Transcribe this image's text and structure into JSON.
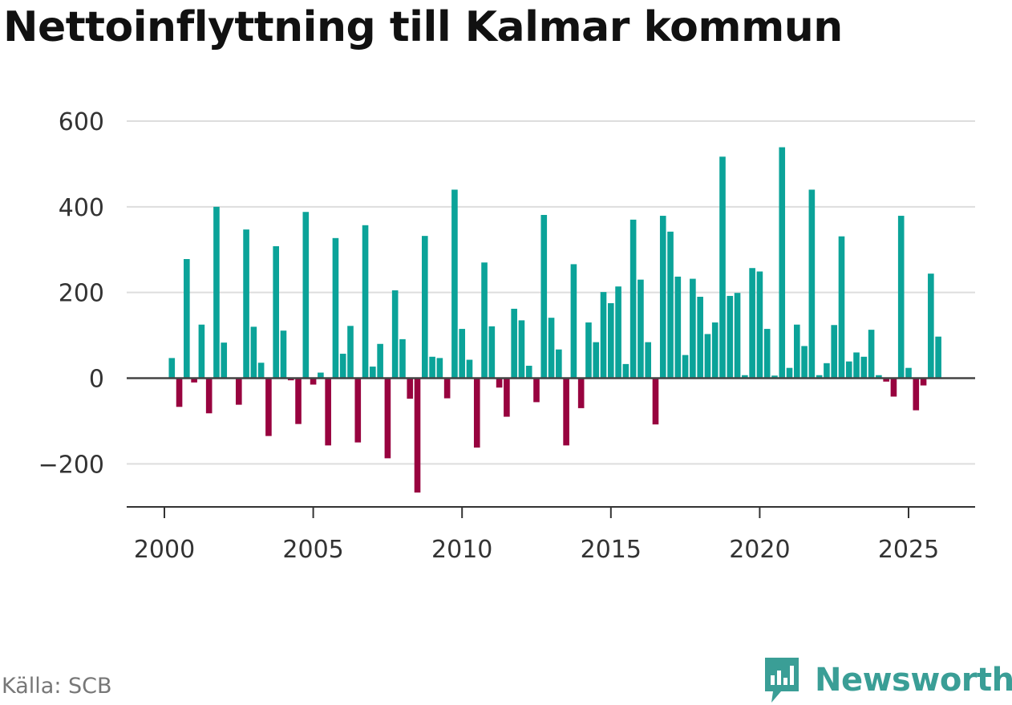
{
  "title": "Nettoinflyttning till Kalmar kommun",
  "source": "Källa: SCB",
  "brand": {
    "name": "Newsworthy",
    "icon": "newsworthy-logo-icon"
  },
  "colors": {
    "positive": "#0ba399",
    "negative": "#98033f",
    "brand": "#3a9e96",
    "grid": "#dddddd",
    "zero": "#444444"
  },
  "chart_data": {
    "type": "bar",
    "title": "Nettoinflyttning till Kalmar kommun",
    "xlabel": "",
    "ylabel": "",
    "ylim": [
      -270,
      600
    ],
    "xlim": [
      2000,
      2026
    ],
    "grid": true,
    "yticks": [
      -200,
      0,
      200,
      400,
      600
    ],
    "ytick_labels": [
      "−200",
      "0",
      "200",
      "400",
      "600"
    ],
    "xticks": [
      2000,
      2005,
      2010,
      2015,
      2020,
      2025
    ],
    "xtick_labels": [
      "2000",
      "2005",
      "2010",
      "2015",
      "2020",
      "2025"
    ],
    "frequency": "quarterly",
    "start": "2000-Q1",
    "values": [
      0,
      47,
      -67,
      278,
      -10,
      125,
      -82,
      400,
      83,
      0,
      -62,
      347,
      120,
      36,
      -135,
      308,
      111,
      -5,
      -107,
      388,
      -15,
      13,
      -157,
      327,
      57,
      122,
      -150,
      357,
      27,
      80,
      -187,
      205,
      91,
      -48,
      -267,
      332,
      50,
      47,
      -47,
      440,
      115,
      43,
      -162,
      270,
      121,
      -22,
      -90,
      162,
      135,
      29,
      -56,
      381,
      141,
      67,
      -157,
      266,
      -70,
      130,
      84,
      201,
      175,
      214,
      33,
      370,
      230,
      84,
      -108,
      379,
      342,
      237,
      54,
      232,
      190,
      103,
      130,
      517,
      192,
      199,
      7,
      257,
      249,
      115,
      6,
      539,
      24,
      125,
      75,
      440,
      7,
      35,
      124,
      331,
      39,
      60,
      50,
      113,
      7,
      -8,
      -43,
      379,
      24,
      -75,
      -17,
      244,
      97
    ]
  }
}
